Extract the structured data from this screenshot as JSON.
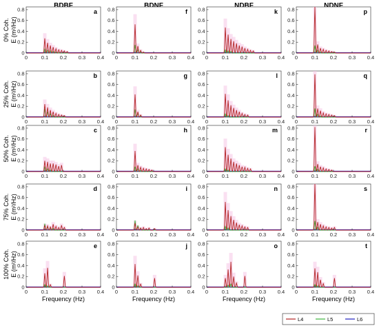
{
  "chart_data": {
    "type": "line",
    "columns": [
      "BDBF",
      "BDNF",
      "NDBF",
      "NDNF"
    ],
    "rows": [
      {
        "label": "0% Coh.",
        "panels": [
          "a",
          "f",
          "k",
          "p"
        ]
      },
      {
        "label": "25% Coh.",
        "panels": [
          "b",
          "g",
          "l",
          "q"
        ]
      },
      {
        "label": "50% Coh.",
        "panels": [
          "c",
          "h",
          "m",
          "r"
        ]
      },
      {
        "label": "75% Coh.",
        "panels": [
          "d",
          "i",
          "n",
          "s"
        ]
      },
      {
        "label": "100% Coh.",
        "panels": [
          "e",
          "j",
          "o",
          "t"
        ]
      }
    ],
    "ylabel": "E (m²/Hz)",
    "xlabel": "Frequency (Hz)",
    "xlim": [
      0,
      0.4
    ],
    "ylim": [
      0,
      0.85
    ],
    "xticks": [
      "0",
      "0.1",
      "0.2",
      "0.3",
      "0.4"
    ],
    "yticks": [
      "0",
      "0.2",
      "0.4",
      "0.6",
      "0.8"
    ],
    "legend": {
      "placement": "bottom-right",
      "items": [
        {
          "name": "L4",
          "color": "#b22222"
        },
        {
          "name": "L5",
          "color": "#3cb43c"
        },
        {
          "name": "L6",
          "color": "#1f1fbf"
        }
      ]
    },
    "band_color": "#f5c6e6",
    "panels": {
      "a": {
        "L4": [
          [
            0.1,
            0.27
          ],
          [
            0.115,
            0.19
          ],
          [
            0.13,
            0.14
          ],
          [
            0.145,
            0.11
          ],
          [
            0.16,
            0.08
          ],
          [
            0.175,
            0.06
          ],
          [
            0.19,
            0.05
          ],
          [
            0.205,
            0.04
          ],
          [
            0.22,
            0.03
          ]
        ],
        "L5": [
          [
            0.1,
            0.07
          ],
          [
            0.115,
            0.05
          ],
          [
            0.13,
            0.04
          ],
          [
            0.145,
            0.03
          ],
          [
            0.16,
            0.02
          ],
          [
            0.175,
            0.01
          ]
        ]
      },
      "f": {
        "L4": [
          [
            0.1,
            0.53
          ],
          [
            0.115,
            0.13
          ],
          [
            0.13,
            0.05
          ],
          [
            0.145,
            0.02
          ]
        ],
        "L5": [
          [
            0.1,
            0.15
          ],
          [
            0.115,
            0.06
          ],
          [
            0.13,
            0.02
          ]
        ]
      },
      "k": {
        "L4": [
          [
            0.1,
            0.47
          ],
          [
            0.115,
            0.34
          ],
          [
            0.13,
            0.26
          ],
          [
            0.145,
            0.22
          ],
          [
            0.16,
            0.18
          ],
          [
            0.175,
            0.14
          ],
          [
            0.19,
            0.12
          ],
          [
            0.205,
            0.09
          ],
          [
            0.22,
            0.07
          ],
          [
            0.235,
            0.05
          ],
          [
            0.25,
            0.04
          ]
        ],
        "L5": [
          [
            0.1,
            0.06
          ],
          [
            0.115,
            0.04
          ],
          [
            0.13,
            0.03
          ]
        ]
      },
      "p": {
        "L4": [
          [
            0.1,
            0.88
          ],
          [
            0.115,
            0.16
          ],
          [
            0.13,
            0.09
          ],
          [
            0.145,
            0.07
          ],
          [
            0.16,
            0.05
          ],
          [
            0.175,
            0.04
          ],
          [
            0.19,
            0.03
          ],
          [
            0.205,
            0.02
          ]
        ],
        "L5": [
          [
            0.1,
            0.14
          ],
          [
            0.115,
            0.05
          ],
          [
            0.13,
            0.02
          ]
        ]
      },
      "b": {
        "L4": [
          [
            0.1,
            0.24
          ],
          [
            0.115,
            0.18
          ],
          [
            0.13,
            0.13
          ],
          [
            0.145,
            0.1
          ],
          [
            0.16,
            0.07
          ],
          [
            0.175,
            0.05
          ],
          [
            0.19,
            0.04
          ],
          [
            0.205,
            0.03
          ]
        ],
        "L5": [
          [
            0.1,
            0.15
          ],
          [
            0.115,
            0.1
          ],
          [
            0.13,
            0.06
          ],
          [
            0.145,
            0.03
          ]
        ]
      },
      "g": {
        "L4": [
          [
            0.1,
            0.42
          ],
          [
            0.115,
            0.1
          ],
          [
            0.13,
            0.04
          ]
        ],
        "L5": [
          [
            0.1,
            0.14
          ],
          [
            0.115,
            0.07
          ],
          [
            0.13,
            0.02
          ]
        ]
      },
      "l": {
        "L4": [
          [
            0.1,
            0.43
          ],
          [
            0.115,
            0.31
          ],
          [
            0.13,
            0.22
          ],
          [
            0.145,
            0.17
          ],
          [
            0.16,
            0.13
          ],
          [
            0.175,
            0.1
          ],
          [
            0.19,
            0.07
          ],
          [
            0.205,
            0.05
          ],
          [
            0.22,
            0.04
          ]
        ],
        "L5": [
          [
            0.1,
            0.06
          ],
          [
            0.115,
            0.03
          ]
        ]
      },
      "q": {
        "L4": [
          [
            0.1,
            0.79
          ],
          [
            0.115,
            0.16
          ],
          [
            0.13,
            0.12
          ],
          [
            0.145,
            0.08
          ],
          [
            0.16,
            0.06
          ],
          [
            0.175,
            0.05
          ],
          [
            0.19,
            0.04
          ],
          [
            0.205,
            0.03
          ]
        ],
        "L5": [
          [
            0.1,
            0.16
          ],
          [
            0.115,
            0.05
          ],
          [
            0.13,
            0.02
          ]
        ]
      },
      "c": {
        "L4": [
          [
            0.1,
            0.2
          ],
          [
            0.115,
            0.18
          ],
          [
            0.13,
            0.15
          ],
          [
            0.145,
            0.15
          ],
          [
            0.16,
            0.13
          ],
          [
            0.175,
            0.1
          ],
          [
            0.19,
            0.12
          ]
        ],
        "L5": [
          [
            0.1,
            0.08
          ],
          [
            0.115,
            0.05
          ],
          [
            0.13,
            0.03
          ]
        ]
      },
      "h": {
        "L4": [
          [
            0.1,
            0.38
          ],
          [
            0.115,
            0.12
          ],
          [
            0.13,
            0.08
          ],
          [
            0.145,
            0.06
          ],
          [
            0.16,
            0.05
          ],
          [
            0.175,
            0.04
          ],
          [
            0.19,
            0.03
          ]
        ],
        "L5": [
          [
            0.1,
            0.09
          ],
          [
            0.115,
            0.05
          ],
          [
            0.13,
            0.02
          ]
        ]
      },
      "m": {
        "L4": [
          [
            0.1,
            0.45
          ],
          [
            0.115,
            0.31
          ],
          [
            0.13,
            0.24
          ],
          [
            0.145,
            0.18
          ],
          [
            0.16,
            0.15
          ],
          [
            0.175,
            0.12
          ],
          [
            0.19,
            0.09
          ],
          [
            0.205,
            0.08
          ],
          [
            0.22,
            0.06
          ],
          [
            0.235,
            0.05
          ]
        ],
        "L5": [
          [
            0.1,
            0.05
          ],
          [
            0.115,
            0.03
          ]
        ]
      },
      "r": {
        "L4": [
          [
            0.1,
            0.82
          ],
          [
            0.115,
            0.14
          ],
          [
            0.13,
            0.09
          ],
          [
            0.145,
            0.07
          ],
          [
            0.16,
            0.05
          ],
          [
            0.175,
            0.04
          ],
          [
            0.19,
            0.03
          ]
        ],
        "L5": [
          [
            0.1,
            0.1
          ],
          [
            0.115,
            0.04
          ]
        ]
      },
      "d": {
        "L4": [
          [
            0.1,
            0.09
          ],
          [
            0.115,
            0.08
          ],
          [
            0.13,
            0.06
          ],
          [
            0.145,
            0.11
          ],
          [
            0.16,
            0.07
          ],
          [
            0.175,
            0.05
          ],
          [
            0.19,
            0.09
          ],
          [
            0.205,
            0.05
          ]
        ],
        "L5": [
          [
            0.1,
            0.12
          ],
          [
            0.115,
            0.06
          ],
          [
            0.13,
            0.04
          ],
          [
            0.145,
            0.03
          ]
        ]
      },
      "i": {
        "L4": [
          [
            0.1,
            0.13
          ],
          [
            0.115,
            0.06
          ],
          [
            0.13,
            0.04
          ],
          [
            0.145,
            0.05
          ],
          [
            0.16,
            0.03
          ],
          [
            0.175,
            0.04
          ],
          [
            0.205,
            0.03
          ]
        ],
        "L5": [
          [
            0.1,
            0.18
          ],
          [
            0.115,
            0.09
          ],
          [
            0.13,
            0.04
          ]
        ]
      },
      "n": {
        "L4": [
          [
            0.1,
            0.52
          ],
          [
            0.115,
            0.37
          ],
          [
            0.13,
            0.26
          ],
          [
            0.145,
            0.19
          ],
          [
            0.16,
            0.14
          ],
          [
            0.175,
            0.1
          ],
          [
            0.19,
            0.08
          ],
          [
            0.205,
            0.06
          ],
          [
            0.22,
            0.05
          ]
        ],
        "L5": [
          [
            0.1,
            0.07
          ],
          [
            0.115,
            0.04
          ]
        ]
      },
      "s": {
        "L4": [
          [
            0.1,
            0.88
          ],
          [
            0.115,
            0.15
          ],
          [
            0.13,
            0.11
          ],
          [
            0.145,
            0.08
          ],
          [
            0.16,
            0.06
          ],
          [
            0.175,
            0.05
          ],
          [
            0.19,
            0.04
          ],
          [
            0.205,
            0.05
          ]
        ],
        "L5": [
          [
            0.1,
            0.17
          ],
          [
            0.115,
            0.05
          ]
        ]
      },
      "e": {
        "L4": [
          [
            0.1,
            0.26
          ],
          [
            0.115,
            0.36
          ],
          [
            0.13,
            0.05
          ],
          [
            0.205,
            0.21
          ]
        ],
        "L5": [
          [
            0.1,
            0.05
          ],
          [
            0.115,
            0.03
          ]
        ]
      },
      "j": {
        "L4": [
          [
            0.1,
            0.43
          ],
          [
            0.115,
            0.22
          ],
          [
            0.13,
            0.06
          ],
          [
            0.205,
            0.17
          ]
        ],
        "L5": [
          [
            0.1,
            0.06
          ],
          [
            0.115,
            0.03
          ]
        ]
      },
      "o": {
        "L4": [
          [
            0.1,
            0.17
          ],
          [
            0.115,
            0.33
          ],
          [
            0.13,
            0.47
          ],
          [
            0.145,
            0.2
          ],
          [
            0.16,
            0.08
          ],
          [
            0.205,
            0.21
          ]
        ],
        "L5": [
          [
            0.115,
            0.04
          ],
          [
            0.13,
            0.06
          ]
        ]
      },
      "t": {
        "L4": [
          [
            0.1,
            0.35
          ],
          [
            0.115,
            0.28
          ],
          [
            0.13,
            0.14
          ],
          [
            0.145,
            0.07
          ],
          [
            0.205,
            0.17
          ]
        ],
        "L5": [
          [
            0.1,
            0.05
          ],
          [
            0.115,
            0.03
          ]
        ]
      }
    }
  }
}
